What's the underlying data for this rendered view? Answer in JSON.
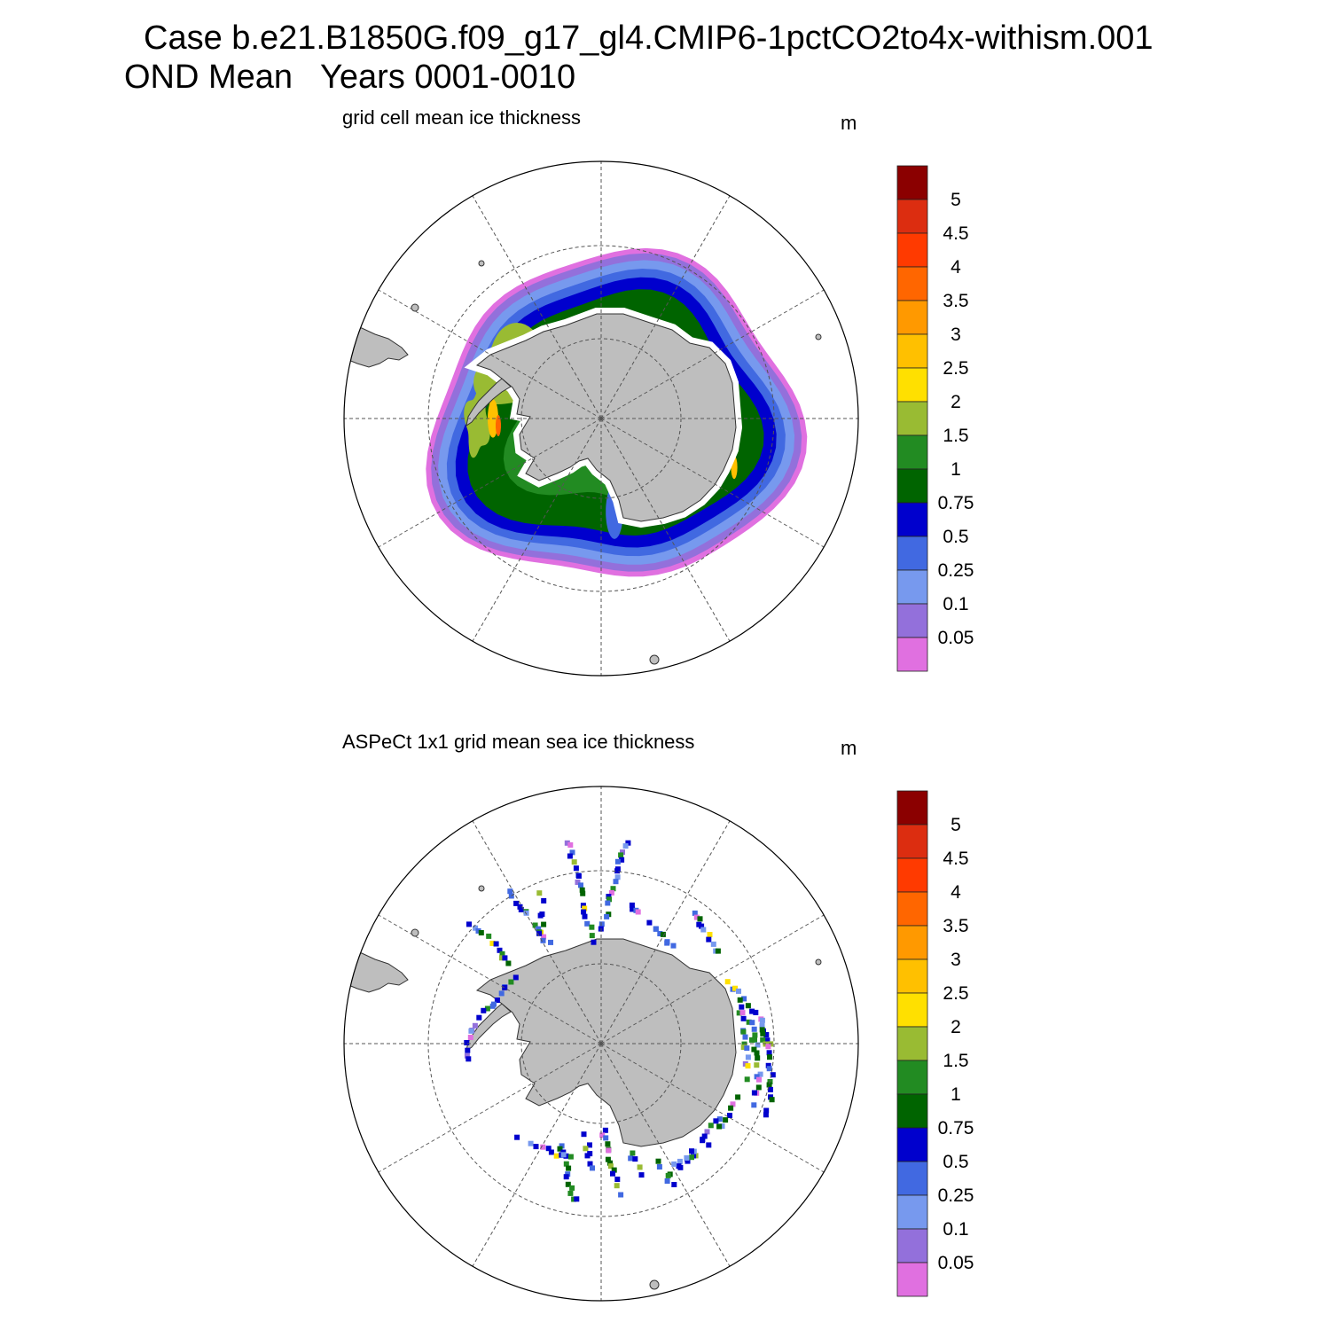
{
  "figure": {
    "title_case": "Case b.e21.B1850G.f09_g17_gl4.CMIP6-1pctCO2to4x-withism.001",
    "title_period": "OND Mean   Years 0001-0010"
  },
  "panels": [
    {
      "title": "grid cell mean ice thickness",
      "units": "m",
      "map_type": "south-polar-stereographic",
      "field": "modeled ice thickness, continuous ring around Antarctica"
    },
    {
      "title": "ASPeCt 1x1 grid mean sea ice thickness",
      "units": "m",
      "map_type": "south-polar-stereographic",
      "field": "ship-track observations, sparse"
    }
  ],
  "colorbar": {
    "labels": [
      "5",
      "4.5",
      "4",
      "3.5",
      "3",
      "2.5",
      "2",
      "1.5",
      "1",
      "0.75",
      "0.5",
      "0.25",
      "0.1",
      "0.05"
    ],
    "colors": [
      "#8b0000",
      "#dc2d10",
      "#ff3a00",
      "#ff6600",
      "#ff9900",
      "#ffc000",
      "#ffe000",
      "#99bb33",
      "#228b22",
      "#006400",
      "#0000cd",
      "#4169e1",
      "#7799ee",
      "#9370db",
      "#e070e0"
    ]
  },
  "colors": {
    "land": "#bebebe",
    "graticule": "#555555"
  }
}
